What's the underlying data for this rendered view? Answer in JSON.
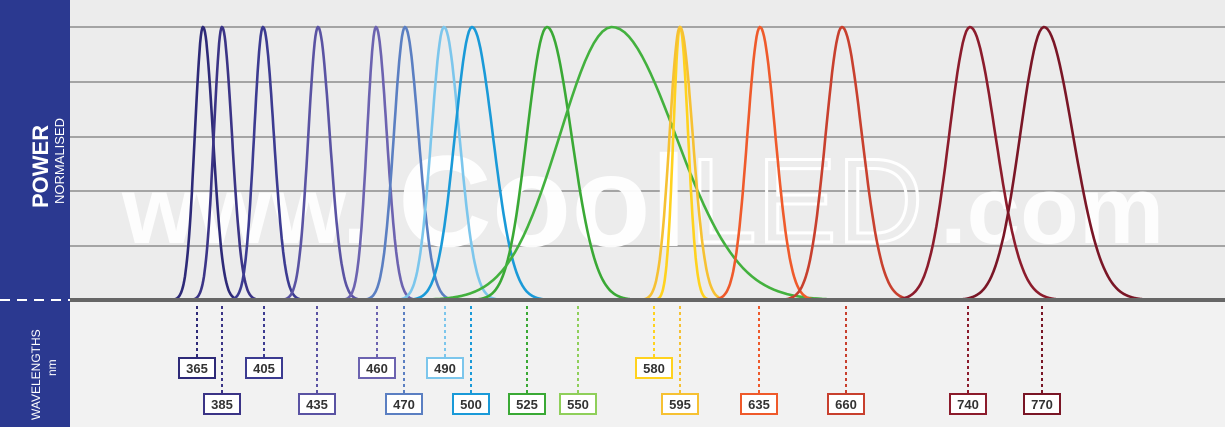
{
  "ylabel": "POWER",
  "ylabel_sub": "NORMALISED",
  "xlabel": "WAVELENGTHS",
  "xlabel_sub": "nm",
  "watermark": {
    "www": "www.",
    "cool": "Cool",
    "led": "LED",
    "dotcom": ".com"
  },
  "colors": {
    "sidebar": "#2b3990",
    "plot_bg": "#ececec",
    "axis_bg": "#f2f2f2",
    "grid": "#8c8c8c"
  },
  "chart_data": {
    "type": "line",
    "title": "",
    "xlabel": "WAVELENGTHS nm",
    "ylabel": "POWER NORMALISED",
    "ylim": [
      0,
      1
    ],
    "grid": true,
    "legend": "none",
    "series": [
      {
        "name": "365",
        "peak": 365,
        "value": 1.0,
        "fwhm": 11,
        "color": "#2e2a78"
      },
      {
        "name": "385",
        "peak": 385,
        "value": 1.0,
        "fwhm": 11,
        "color": "#3b3486"
      },
      {
        "name": "405",
        "peak": 405,
        "value": 1.0,
        "fwhm": 12,
        "color": "#3c3b91"
      },
      {
        "name": "435",
        "peak": 435,
        "value": 1.0,
        "fwhm": 13,
        "color": "#5a53a3"
      },
      {
        "name": "460",
        "peak": 460,
        "value": 1.0,
        "fwhm": 12,
        "color": "#6c63b0"
      },
      {
        "name": "470",
        "peak": 470,
        "value": 1.0,
        "fwhm": 15,
        "color": "#5b7fc2"
      },
      {
        "name": "490",
        "peak": 490,
        "value": 1.0,
        "fwhm": 17,
        "color": "#7cc6ec"
      },
      {
        "name": "500",
        "peak": 500,
        "value": 1.0,
        "fwhm": 23,
        "color": "#1a9ad8"
      },
      {
        "name": "525",
        "peak": 525,
        "value": 1.0,
        "fwhm": 27,
        "color": "#3aa935"
      },
      {
        "name": "550",
        "peak": 550,
        "value": 1.0,
        "fwhm": 70,
        "color": "#43b13e"
      },
      {
        "name": "580",
        "peak": 580,
        "value": 1.0,
        "fwhm": 9,
        "color": "#ffd21e"
      },
      {
        "name": "595",
        "peak": 595,
        "value": 1.0,
        "fwhm": 14,
        "color": "#f6c133"
      },
      {
        "name": "635",
        "peak": 635,
        "value": 1.0,
        "fwhm": 17,
        "color": "#ef5a2b"
      },
      {
        "name": "660",
        "peak": 660,
        "value": 1.0,
        "fwhm": 22,
        "color": "#c8402e"
      },
      {
        "name": "740",
        "peak": 740,
        "value": 1.0,
        "fwhm": 28,
        "color": "#8c1c2c"
      },
      {
        "name": "770",
        "peak": 770,
        "value": 1.0,
        "fwhm": 32,
        "color": "#7a1626"
      }
    ],
    "wavelength_labels": [
      {
        "text": "365",
        "color": "#2e2a78",
        "row": 1
      },
      {
        "text": "385",
        "color": "#3b3486",
        "row": 2
      },
      {
        "text": "405",
        "color": "#3c3b91",
        "row": 1
      },
      {
        "text": "435",
        "color": "#5a53a3",
        "row": 2
      },
      {
        "text": "460",
        "color": "#6c63b0",
        "row": 1
      },
      {
        "text": "470",
        "color": "#5b7fc2",
        "row": 2
      },
      {
        "text": "490",
        "color": "#7cc6ec",
        "row": 1
      },
      {
        "text": "500",
        "color": "#1a9ad8",
        "row": 2
      },
      {
        "text": "525",
        "color": "#3aa935",
        "row": 2
      },
      {
        "text": "550",
        "color": "#8fcf5a",
        "row": 2
      },
      {
        "text": "580",
        "color": "#ffd21e",
        "row": 1
      },
      {
        "text": "595",
        "color": "#f6c133",
        "row": 2
      },
      {
        "text": "635",
        "color": "#ef5a2b",
        "row": 2
      },
      {
        "text": "660",
        "color": "#c8402e",
        "row": 2
      },
      {
        "text": "740",
        "color": "#8c1c2c",
        "row": 2
      },
      {
        "text": "770",
        "color": "#7a1626",
        "row": 2
      }
    ]
  }
}
